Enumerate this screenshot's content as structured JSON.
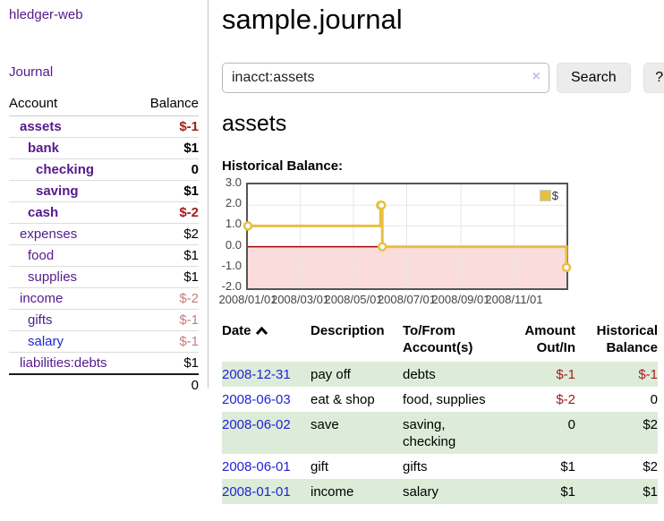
{
  "colors": {
    "link_purple": "#551a8b",
    "link_blue": "#2323d6",
    "negative_strong": "#a31c1c",
    "negative_muted": "#c47e7e",
    "row_green": "#dcecd9",
    "series_gold": "#e9bf41"
  },
  "sidebar": {
    "brand": "hledger-web",
    "nav": {
      "journal": "Journal"
    },
    "table": {
      "account_header": "Account",
      "balance_header": "Balance"
    },
    "accounts": [
      {
        "name": "assets",
        "balance": "$-1"
      },
      {
        "name": "bank",
        "balance": "$1"
      },
      {
        "name": "checking",
        "balance": "0"
      },
      {
        "name": "saving",
        "balance": "$1"
      },
      {
        "name": "cash",
        "balance": "$-2"
      },
      {
        "name": "expenses",
        "balance": "$2"
      },
      {
        "name": "food",
        "balance": "$1"
      },
      {
        "name": "supplies",
        "balance": "$1"
      },
      {
        "name": "income",
        "balance": "$-2"
      },
      {
        "name": "gifts",
        "balance": "$-1"
      },
      {
        "name": "salary",
        "balance": "$-1"
      },
      {
        "name": "liabilities:debts",
        "balance": "$1"
      }
    ],
    "total": "0"
  },
  "header": {
    "title": "sample.journal"
  },
  "search": {
    "value": "inacct:assets",
    "clear_icon": "×",
    "search_button": "Search",
    "help_button": "?"
  },
  "account_page": {
    "heading": "assets",
    "chart_label": "Historical Balance:"
  },
  "chart_data": {
    "type": "line",
    "style": "steps",
    "title": "Historical Balance:",
    "series": [
      {
        "name": "$",
        "color": "#e9bf41",
        "points": [
          [
            "2008-01-01",
            1
          ],
          [
            "2008-06-01",
            2
          ],
          [
            "2008-06-02",
            2
          ],
          [
            "2008-06-03",
            0
          ],
          [
            "2008-12-31",
            -1
          ]
        ]
      }
    ],
    "xlim": [
      "2008-01-01",
      "2008-12-31"
    ],
    "ylim": [
      -2,
      3
    ],
    "xticks": [
      "2008/01/01",
      "2008/03/01",
      "2008/05/01",
      "2008/07/01",
      "2008/09/01",
      "2008/11/01"
    ],
    "yticks": [
      3.0,
      2.0,
      1.0,
      0.0,
      -1.0,
      -2.0
    ],
    "grid": true,
    "legend": [
      "$"
    ],
    "legend_position": "top-right",
    "negative_region_color": "#fbdcdc",
    "zero_line_color": "#a40000"
  },
  "register_table": {
    "headers": {
      "date": "Date",
      "description": "Description",
      "tofrom": "To/From Account(s)",
      "amount": "Amount Out/In",
      "historical": "Historical Balance"
    },
    "rows": [
      {
        "date": "2008-12-31",
        "description": "pay off",
        "accounts": "debts",
        "amount": "$-1",
        "historical": "$-1"
      },
      {
        "date": "2008-06-03",
        "description": "eat & shop",
        "accounts": "food, supplies",
        "amount": "$-2",
        "historical": "0"
      },
      {
        "date": "2008-06-02",
        "description": "save",
        "accounts": "saving, checking",
        "amount": "0",
        "historical": "$2"
      },
      {
        "date": "2008-06-01",
        "description": "gift",
        "accounts": "gifts",
        "amount": "$1",
        "historical": "$2"
      },
      {
        "date": "2008-01-01",
        "description": "income",
        "accounts": "salary",
        "amount": "$1",
        "historical": "$1"
      }
    ]
  }
}
